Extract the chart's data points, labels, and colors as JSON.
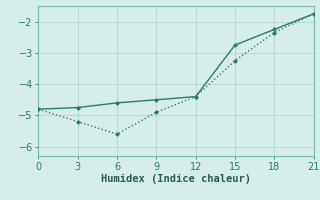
{
  "line1_x": [
    0,
    3,
    6,
    9,
    12,
    15,
    18,
    21
  ],
  "line1_y": [
    -4.8,
    -4.75,
    -4.6,
    -4.5,
    -4.4,
    -2.75,
    -2.25,
    -1.75
  ],
  "line2_x": [
    0,
    3,
    6,
    9,
    12,
    15,
    18,
    21
  ],
  "line2_y": [
    -4.8,
    -5.2,
    -5.6,
    -4.9,
    -4.4,
    -3.25,
    -2.35,
    -1.75
  ],
  "line_color": "#2a7a6a",
  "xlabel": "Humidex (Indice chaleur)",
  "xlim": [
    0,
    21
  ],
  "ylim": [
    -6.3,
    -1.5
  ],
  "xticks": [
    0,
    3,
    6,
    9,
    12,
    15,
    18,
    21
  ],
  "yticks": [
    -6,
    -5,
    -4,
    -3,
    -2
  ],
  "bg_color": "#d5eeea",
  "grid_color": "#b8dbd6",
  "spine_color": "#7ab8b0",
  "tick_label_color": "#2a7a6a",
  "xlabel_color": "#2a5a54",
  "tick_fontsize": 7,
  "xlabel_fontsize": 7.5
}
